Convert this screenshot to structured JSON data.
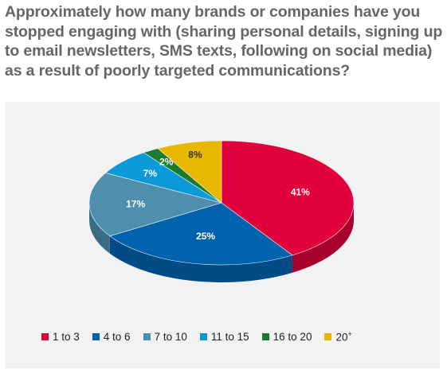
{
  "title": "Approximately how many brands or companies have you stopped engaging with (sharing personal details, signing up to email newsletters, SMS texts, following on social media) as a result of poorly targeted communications?",
  "chart_data": {
    "type": "pie",
    "title": "Approximately how many brands or companies have you stopped engaging with (sharing personal details, signing up to email newsletters, SMS texts, following on social media) as a result of poorly targeted communications?",
    "style": "3d",
    "legend_position": "bottom",
    "slices": [
      {
        "label": "1 to 3",
        "value": 41,
        "value_label": "41%",
        "color": "#e0003c",
        "side_color": "#a8002c",
        "text_color": "#ffffff"
      },
      {
        "label": "4 to 6",
        "value": 25,
        "value_label": "25%",
        "color": "#0061ad",
        "side_color": "#004a85",
        "text_color": "#ffffff"
      },
      {
        "label": "7 to 10",
        "value": 17,
        "value_label": "17%",
        "color": "#4d8fad",
        "side_color": "#3a6d85",
        "text_color": "#ffffff"
      },
      {
        "label": "11 to 15",
        "value": 7,
        "value_label": "7%",
        "color": "#0a9ad8",
        "side_color": "#0876a6",
        "text_color": "#ffffff"
      },
      {
        "label": "16 to 20",
        "value": 2,
        "value_label": "2%",
        "color": "#1a7a2e",
        "side_color": "#125a21",
        "text_color": "#ffffff"
      },
      {
        "label": "20+",
        "value": 8,
        "value_label": "8%",
        "color": "#e8b800",
        "side_color": "#b08c00",
        "text_color": "#333333"
      }
    ]
  }
}
